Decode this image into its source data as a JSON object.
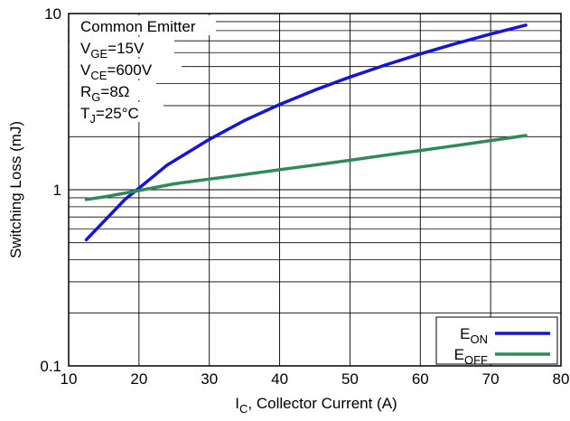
{
  "chart_data": {
    "type": "line",
    "xlabel": {
      "main": "I",
      "sub": "C",
      "rest": ", Collector Current (A)"
    },
    "ylabel": "Switching Loss (mJ)",
    "xlim": [
      10,
      80
    ],
    "ylim": [
      0.1,
      10
    ],
    "yscale": "log",
    "grid": true,
    "x_ticks": [
      "10",
      "20",
      "30",
      "40",
      "50",
      "60",
      "70",
      "80"
    ],
    "y_ticks": [
      "0.1",
      "1",
      "10"
    ],
    "conditions": [
      {
        "parts": [
          {
            "t": "Common Emitter"
          }
        ]
      },
      {
        "parts": [
          {
            "t": "V"
          },
          {
            "t": "GE",
            "sub": true
          },
          {
            "t": "=15V"
          }
        ]
      },
      {
        "parts": [
          {
            "t": "V"
          },
          {
            "t": "CE",
            "sub": true
          },
          {
            "t": "=600V"
          }
        ]
      },
      {
        "parts": [
          {
            "t": "R"
          },
          {
            "t": "G",
            "sub": true
          },
          {
            "t": "=8Ω"
          }
        ]
      },
      {
        "parts": [
          {
            "t": "T"
          },
          {
            "t": "J",
            "sub": true
          },
          {
            "t": "=25°C"
          }
        ]
      }
    ],
    "series": [
      {
        "name": {
          "main": "E",
          "sub": "ON"
        },
        "color": "#1414dc",
        "x": [
          12.5,
          15,
          18,
          20,
          24,
          30,
          35,
          40,
          45,
          50,
          55,
          60,
          65,
          70,
          75
        ],
        "y": [
          0.52,
          0.66,
          0.88,
          1.02,
          1.38,
          1.93,
          2.47,
          3.05,
          3.68,
          4.36,
          5.1,
          5.9,
          6.75,
          7.65,
          8.6
        ]
      },
      {
        "name": {
          "main": "E",
          "sub": "OFF"
        },
        "color": "#2e8b57",
        "x": [
          12.5,
          15,
          20,
          25,
          30,
          35,
          40,
          45,
          50,
          55,
          60,
          65,
          70,
          75
        ],
        "y": [
          0.88,
          0.91,
          0.99,
          1.08,
          1.15,
          1.22,
          1.3,
          1.38,
          1.47,
          1.57,
          1.67,
          1.78,
          1.9,
          2.03
        ]
      }
    ]
  }
}
